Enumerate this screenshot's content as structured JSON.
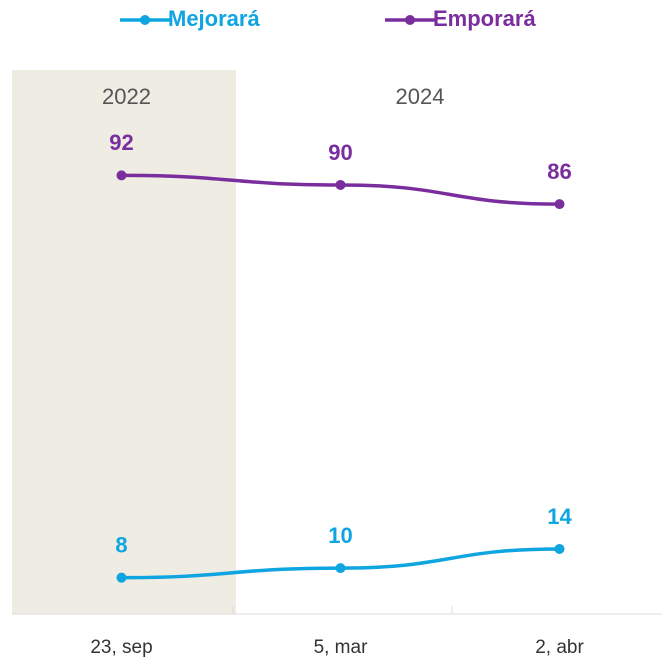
{
  "chart_data": {
    "type": "line",
    "categories": [
      "23, sep",
      "5, mar",
      "2, abr"
    ],
    "series": [
      {
        "name": "Mejorará",
        "color": "#0ea5e0",
        "values": [
          8,
          10,
          14
        ]
      },
      {
        "name": "Emporará",
        "color": "#7a2e9e",
        "values": [
          92,
          90,
          86
        ]
      }
    ],
    "ylim": [
      0,
      114
    ],
    "annotations": [
      {
        "label": "2022",
        "start": 0,
        "end": 0,
        "shaded": true,
        "color": "#eeece3"
      },
      {
        "label": "2024",
        "start": 1,
        "end": 2,
        "shaded": false
      }
    ],
    "legend": "top"
  }
}
